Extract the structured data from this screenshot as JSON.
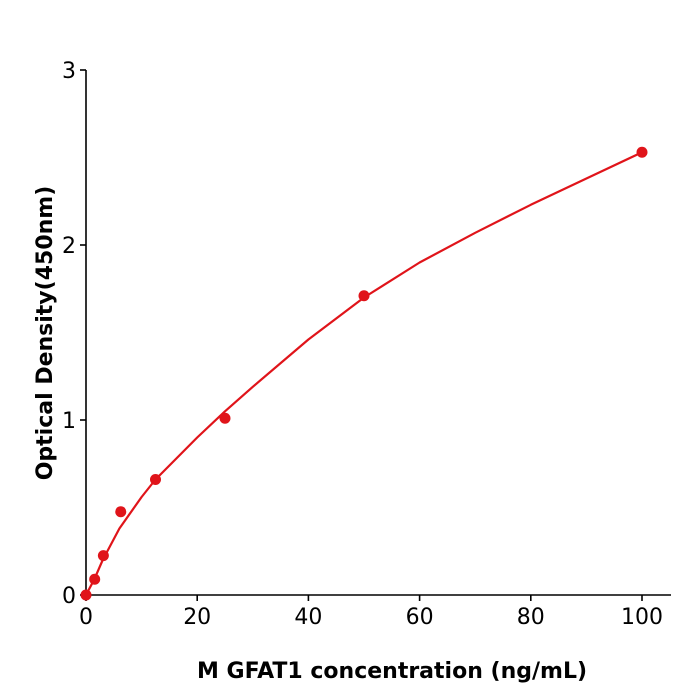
{
  "chart_data": {
    "type": "scatter",
    "title": "",
    "xlabel": "M  GFAT1 concentration (ng/mL)",
    "ylabel": "Optical Density(450nm)",
    "xlim": [
      0,
      105
    ],
    "ylim": [
      0,
      3
    ],
    "xticks": [
      "0",
      "20",
      "40",
      "60",
      "80",
      "100"
    ],
    "yticks": [
      "0",
      "1",
      "2",
      "3"
    ],
    "grid": false,
    "color": "#e0141a",
    "points": {
      "x": [
        0,
        1.5625,
        3.125,
        6.25,
        12.5,
        25,
        50,
        100
      ],
      "y": [
        0.0,
        0.09,
        0.225,
        0.476,
        0.66,
        1.01,
        1.71,
        2.53
      ]
    },
    "fit_curve": {
      "x": [
        0,
        1.5,
        3,
        6,
        10,
        12.5,
        20,
        25,
        30,
        40,
        50,
        60,
        70,
        80,
        90,
        100
      ],
      "y": [
        0,
        0.09,
        0.2,
        0.38,
        0.56,
        0.66,
        0.9,
        1.05,
        1.19,
        1.46,
        1.7,
        1.9,
        2.07,
        2.23,
        2.38,
        2.53
      ]
    }
  }
}
